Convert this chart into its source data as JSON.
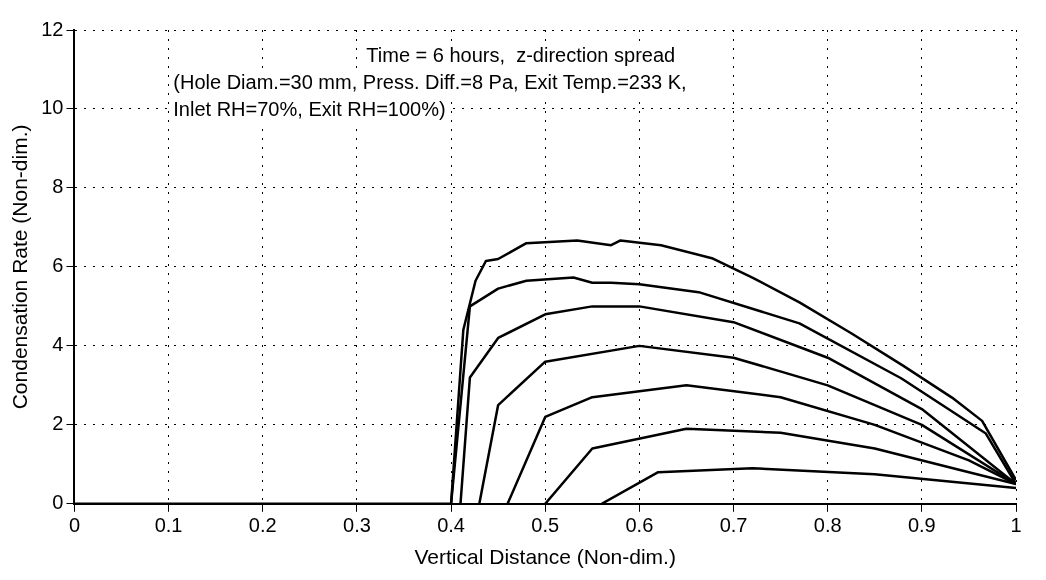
{
  "chart_data": {
    "type": "line",
    "xlabel": "Vertical Distance (Non-dim.)",
    "ylabel": "Condensation Rate (Non-dim.)",
    "annotations": [
      "Time = 6 hours,  z-direction spread",
      "(Hole Diam.=30 mm, Press. Diff.=8 Pa, Exit Temp.=233 K,",
      "Inlet RH=70%, Exit RH=100%)"
    ],
    "xlim": [
      0,
      1
    ],
    "xticks": [
      0,
      0.1,
      0.2,
      0.3,
      0.4,
      0.5,
      0.6,
      0.7,
      0.8,
      0.9,
      1
    ],
    "ylim": [
      0,
      12
    ],
    "yticks": [
      0,
      2,
      4,
      6,
      8,
      10,
      12
    ],
    "grid": true,
    "legend": false,
    "marker": "none",
    "line_style": "solid",
    "series": [
      {
        "color": "#000000",
        "x": [
          0,
          0.39,
          0.4,
          0.413,
          0.426,
          0.437,
          0.45,
          0.48,
          0.534,
          0.57,
          0.58,
          0.623,
          0.677,
          0.72,
          0.77,
          0.825,
          0.88,
          0.932,
          0.964,
          1.0
        ],
        "values": [
          0,
          0,
          0,
          4.4,
          5.65,
          6.15,
          6.2,
          6.6,
          6.67,
          6.55,
          6.67,
          6.55,
          6.22,
          5.73,
          5.1,
          4.32,
          3.5,
          2.69,
          2.1,
          0.6
        ]
      },
      {
        "color": "#000000",
        "x": [
          0.4,
          0.42,
          0.45,
          0.48,
          0.53,
          0.55,
          0.57,
          0.6,
          0.663,
          0.77,
          0.878,
          0.968,
          1.0
        ],
        "values": [
          0,
          5.0,
          5.45,
          5.65,
          5.73,
          5.6,
          5.6,
          5.56,
          5.36,
          4.57,
          3.18,
          1.78,
          0.5
        ]
      },
      {
        "color": "#000000",
        "x": [
          0.41,
          0.42,
          0.45,
          0.5,
          0.55,
          0.6,
          0.7,
          0.8,
          0.9,
          1.0
        ],
        "values": [
          0,
          3.2,
          4.2,
          4.8,
          5.0,
          5.0,
          4.6,
          3.7,
          2.4,
          0.5
        ]
      },
      {
        "color": "#000000",
        "x": [
          0.43,
          0.45,
          0.5,
          0.6,
          0.7,
          0.8,
          0.9,
          1.0
        ],
        "values": [
          0,
          2.5,
          3.6,
          4.0,
          3.7,
          3.0,
          2.0,
          0.5
        ]
      },
      {
        "color": "#000000",
        "x": [
          0.46,
          0.5,
          0.55,
          0.65,
          0.75,
          0.85,
          0.95,
          1.0
        ],
        "values": [
          0,
          2.2,
          2.7,
          3.0,
          2.7,
          2.0,
          1.1,
          0.5
        ]
      },
      {
        "color": "#000000",
        "x": [
          0.5,
          0.55,
          0.65,
          0.75,
          0.85,
          0.95,
          1.0
        ],
        "values": [
          0,
          1.4,
          1.9,
          1.8,
          1.4,
          0.8,
          0.5
        ]
      },
      {
        "color": "#000000",
        "x": [
          0.56,
          0.62,
          0.72,
          0.85,
          1.0
        ],
        "values": [
          0,
          0.8,
          0.9,
          0.75,
          0.4
        ]
      }
    ]
  }
}
